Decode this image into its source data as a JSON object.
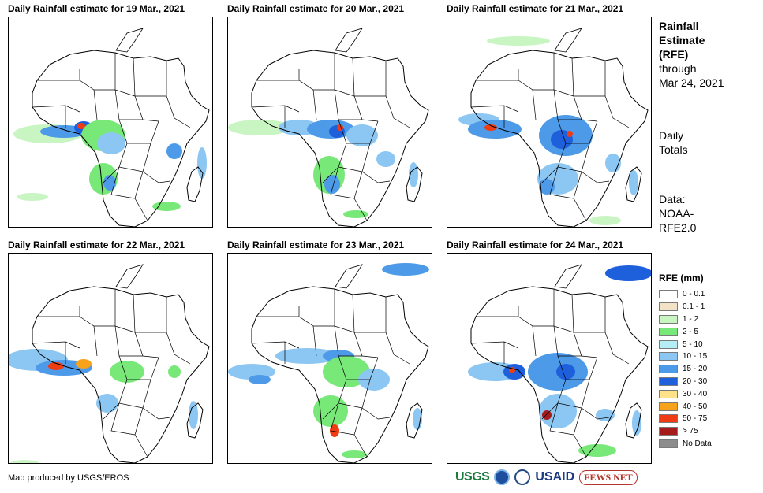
{
  "panels": [
    {
      "title": "Daily Rainfall estimate for 19 Mar., 2021"
    },
    {
      "title": "Daily Rainfall estimate for 20 Mar., 2021"
    },
    {
      "title": "Daily Rainfall estimate for 21 Mar., 2021"
    },
    {
      "title": "Daily Rainfall estimate for 22 Mar., 2021"
    },
    {
      "title": "Daily Rainfall estimate for 23 Mar., 2021"
    },
    {
      "title": "Daily Rainfall estimate for 24 Mar., 2021"
    }
  ],
  "side": {
    "title_line1": "Rainfall",
    "title_line2": "Estimate",
    "title_line3": "(RFE)",
    "through": "through",
    "date": "Mar 24, 2021",
    "daily1": "Daily",
    "daily2": "Totals",
    "data1": "Data:",
    "data2": "NOAA-",
    "data3": "RFE2.0"
  },
  "legend": {
    "title": "RFE (mm)",
    "items": [
      {
        "label": "0 - 0.1",
        "color": "#ffffff"
      },
      {
        "label": "0.1 - 1",
        "color": "#f2e3c7"
      },
      {
        "label": "1 - 2",
        "color": "#c9f5c3"
      },
      {
        "label": "2 - 5",
        "color": "#78e878"
      },
      {
        "label": "5 - 10",
        "color": "#b6eef6"
      },
      {
        "label": "10 - 15",
        "color": "#8cc6f2"
      },
      {
        "label": "15 - 20",
        "color": "#4d9ae8"
      },
      {
        "label": "20 - 30",
        "color": "#1e5fdc"
      },
      {
        "label": "30 - 40",
        "color": "#fde28a"
      },
      {
        "label": "40 - 50",
        "color": "#f7a21b"
      },
      {
        "label": "50 - 75",
        "color": "#f03c12"
      },
      {
        "label": "> 75",
        "color": "#a61c1c"
      },
      {
        "label": "No Data",
        "color": "#8c8c8c"
      }
    ]
  },
  "credit": "Map produced by USGS/EROS",
  "logos": {
    "usgs": "USGS",
    "usaid": "USAID",
    "fews": "FEWS NET"
  }
}
